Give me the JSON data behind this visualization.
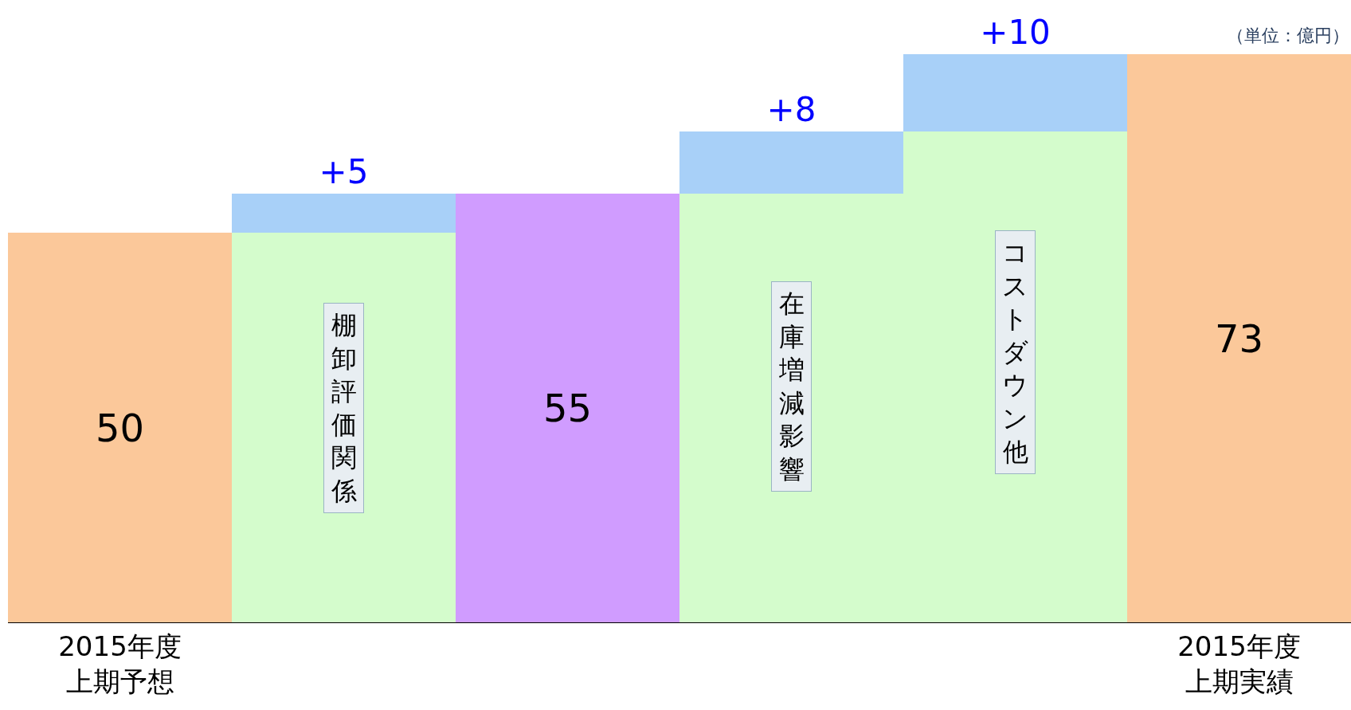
{
  "chart_data": {
    "type": "bar",
    "stacked": true,
    "subtitle": "（単位：億円）",
    "categories": [
      "2015年度上期予想",
      null,
      null,
      null,
      null,
      "2015年度上期実績"
    ],
    "series": [
      {
        "colors": [
          "#fbc89a",
          "#d4fccc",
          "#d09cff",
          "#d4fccc",
          "#d4fccc",
          "#fbc89a"
        ],
        "values": [
          50,
          50,
          55,
          55,
          63,
          73
        ],
        "value_labels": [
          "50",
          null,
          "55",
          null,
          null,
          "73"
        ]
      },
      {
        "color": "#a8d0f8",
        "values": [
          null,
          5,
          null,
          8,
          10,
          null
        ],
        "value_labels": [
          null,
          "+5",
          null,
          "+8",
          "+10",
          null
        ]
      }
    ],
    "annotations": [
      "棚卸評価関係",
      "在庫増減影響",
      "コストダウン他"
    ],
    "tick_labels": "x",
    "legend": false
  }
}
